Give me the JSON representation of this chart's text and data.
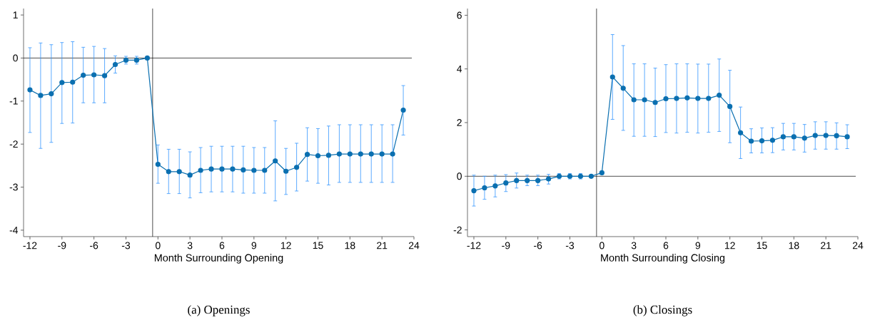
{
  "chart_data": [
    {
      "type": "line",
      "title": "(a) Openings",
      "xlabel": "Month Surrounding Opening",
      "marker": "circle",
      "line_style": "solid",
      "xlim": [
        -12.6,
        24
      ],
      "ylim": [
        -4.15,
        1.15
      ],
      "xticks": [
        -12,
        -9,
        -6,
        -3,
        0,
        3,
        6,
        9,
        12,
        15,
        18,
        21,
        24
      ],
      "yticks": [
        -4,
        -3,
        -2,
        -1,
        0,
        1
      ],
      "ref_lines": [
        {
          "axis": "x",
          "value": -0.5
        },
        {
          "axis": "y",
          "value": 0
        }
      ],
      "series": [
        {
          "color": "#0a6fb0",
          "x": [
            -12,
            -11,
            -10,
            -9,
            -8,
            -7,
            -6,
            -5,
            -4,
            -3,
            -2,
            -1,
            0,
            1,
            2,
            3,
            4,
            5,
            6,
            7,
            8,
            9,
            10,
            11,
            12,
            13,
            14,
            15,
            16,
            17,
            18,
            19,
            20,
            21,
            22,
            23
          ],
          "values": [
            -0.74,
            -0.87,
            -0.83,
            -0.57,
            -0.56,
            -0.4,
            -0.39,
            -0.41,
            -0.15,
            -0.05,
            -0.05,
            0,
            -2.47,
            -2.64,
            -2.64,
            -2.72,
            -2.61,
            -2.58,
            -2.58,
            -2.58,
            -2.6,
            -2.61,
            -2.61,
            -2.39,
            -2.63,
            -2.54,
            -2.24,
            -2.27,
            -2.26,
            -2.23,
            -2.23,
            -2.23,
            -2.23,
            -2.23,
            -2.23,
            -1.21
          ],
          "errors": [
            [
              -1.73,
              0.24
            ],
            [
              -2.1,
              0.35
            ],
            [
              -1.96,
              0.31
            ],
            [
              -1.52,
              0.36
            ],
            [
              -1.51,
              0.38
            ],
            [
              -1.04,
              0.25
            ],
            [
              -1.04,
              0.27
            ],
            [
              -1.04,
              0.22
            ],
            [
              -0.35,
              0.05
            ],
            [
              -0.14,
              0.04
            ],
            [
              -0.14,
              0.04
            ],
            null,
            [
              -2.91,
              -2.02
            ],
            [
              -3.15,
              -2.12
            ],
            [
              -3.15,
              -2.12
            ],
            [
              -3.25,
              -2.18
            ],
            [
              -3.13,
              -2.08
            ],
            [
              -3.11,
              -2.05
            ],
            [
              -3.11,
              -2.05
            ],
            [
              -3.11,
              -2.05
            ],
            [
              -3.14,
              -2.05
            ],
            [
              -3.14,
              -2.08
            ],
            [
              -3.14,
              -2.08
            ],
            [
              -3.32,
              -1.46
            ],
            [
              -3.17,
              -2.1
            ],
            [
              -3.09,
              -1.98
            ],
            [
              -2.86,
              -1.62
            ],
            [
              -2.91,
              -1.64
            ],
            [
              -2.95,
              -1.58
            ],
            [
              -2.89,
              -1.55
            ],
            [
              -2.89,
              -1.55
            ],
            [
              -2.89,
              -1.55
            ],
            [
              -2.89,
              -1.55
            ],
            [
              -2.89,
              -1.55
            ],
            [
              -2.89,
              -1.55
            ],
            [
              -1.79,
              -0.64
            ]
          ]
        }
      ]
    },
    {
      "type": "line",
      "title": "(b) Closings",
      "xlabel": "Month Surrounding Closing",
      "marker": "circle",
      "line_style": "solid",
      "xlim": [
        -12.6,
        24
      ],
      "ylim": [
        -2.25,
        6.25
      ],
      "xticks": [
        -12,
        -9,
        -6,
        -3,
        0,
        3,
        6,
        9,
        12,
        15,
        18,
        21,
        24
      ],
      "yticks": [
        -2,
        0,
        2,
        4,
        6
      ],
      "ref_lines": [
        {
          "axis": "x",
          "value": -0.5
        },
        {
          "axis": "y",
          "value": 0
        }
      ],
      "series": [
        {
          "color": "#0a6fb0",
          "x": [
            -12,
            -11,
            -10,
            -9,
            -8,
            -7,
            -6,
            -5,
            -4,
            -3,
            -2,
            -1,
            0,
            1,
            2,
            3,
            4,
            5,
            6,
            7,
            8,
            9,
            10,
            11,
            12,
            13,
            14,
            15,
            16,
            17,
            18,
            19,
            20,
            21,
            22,
            23
          ],
          "values": [
            -0.54,
            -0.43,
            -0.36,
            -0.25,
            -0.16,
            -0.16,
            -0.16,
            -0.1,
            0,
            0,
            0,
            0,
            0.13,
            3.7,
            3.28,
            2.85,
            2.85,
            2.75,
            2.89,
            2.9,
            2.92,
            2.9,
            2.9,
            3.02,
            2.6,
            1.62,
            1.31,
            1.32,
            1.34,
            1.47,
            1.47,
            1.42,
            1.52,
            1.52,
            1.51,
            1.47
          ],
          "errors": [
            [
              -1.11,
              0.04
            ],
            [
              -0.86,
              0
            ],
            [
              -0.77,
              0.04
            ],
            [
              -0.57,
              0.06
            ],
            [
              -0.44,
              0.12
            ],
            [
              -0.35,
              0.04
            ],
            [
              -0.35,
              0.04
            ],
            [
              -0.29,
              0.07
            ],
            [
              -0.1,
              0.1
            ],
            [
              -0.1,
              0.1
            ],
            [
              -0.1,
              0.1
            ],
            null,
            null,
            [
              2.12,
              5.28
            ],
            [
              1.71,
              4.87
            ],
            [
              1.49,
              4.19
            ],
            [
              1.49,
              4.19
            ],
            [
              1.48,
              4.03
            ],
            [
              1.63,
              4.16
            ],
            [
              1.61,
              4.19
            ],
            [
              1.64,
              4.19
            ],
            [
              1.61,
              4.18
            ],
            [
              1.64,
              4.18
            ],
            [
              1.67,
              4.37
            ],
            [
              1.25,
              3.95
            ],
            [
              0.66,
              2.58
            ],
            [
              0.87,
              1.77
            ],
            [
              0.87,
              1.8
            ],
            [
              0.88,
              1.81
            ],
            [
              0.98,
              1.97
            ],
            [
              0.98,
              1.97
            ],
            [
              0.9,
              1.93
            ],
            [
              1.01,
              2.03
            ],
            [
              1.01,
              2.03
            ],
            [
              1.01,
              1.99
            ],
            [
              1.03,
              1.92
            ]
          ]
        }
      ]
    }
  ]
}
